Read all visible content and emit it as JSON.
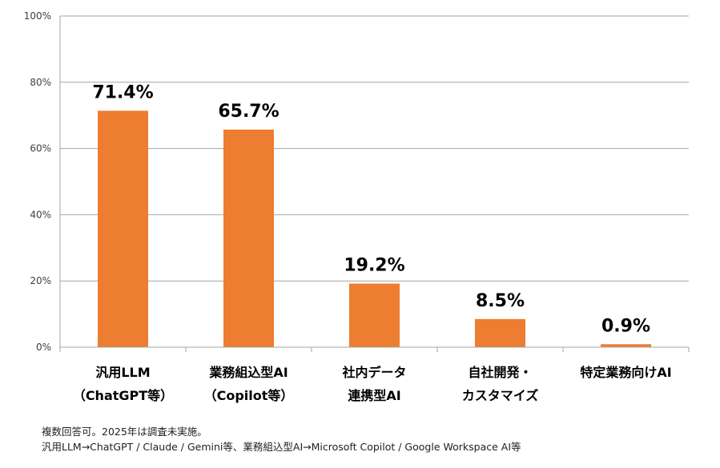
{
  "chart_data": {
    "type": "bar",
    "categories": [
      [
        "汎用LLM",
        "（ChatGPT等）"
      ],
      [
        "業務組込型AI",
        "（Copilot等）"
      ],
      [
        "社内データ",
        "連携型AI"
      ],
      [
        "自社開発・",
        "カスタマイズ"
      ],
      [
        "特定業務向けAI"
      ]
    ],
    "values": [
      71.4,
      65.7,
      19.2,
      8.5,
      0.9
    ],
    "data_labels": [
      "71.4%",
      "65.7%",
      "19.2%",
      "8.5%",
      "0.9%"
    ],
    "y_ticks": [
      "0%",
      "20%",
      "40%",
      "60%",
      "80%",
      "100%"
    ],
    "ylim": [
      0,
      100
    ],
    "grid": true,
    "bar_color": "#ED7D31",
    "grid_color": "#A6A6A6"
  },
  "notes": [
    "複数回答可。2025年は調査未実施。",
    "汎用LLM→ChatGPT / Claude / Gemini等、業務組込型AI→Microsoft Copilot / Google Workspace AI等"
  ]
}
